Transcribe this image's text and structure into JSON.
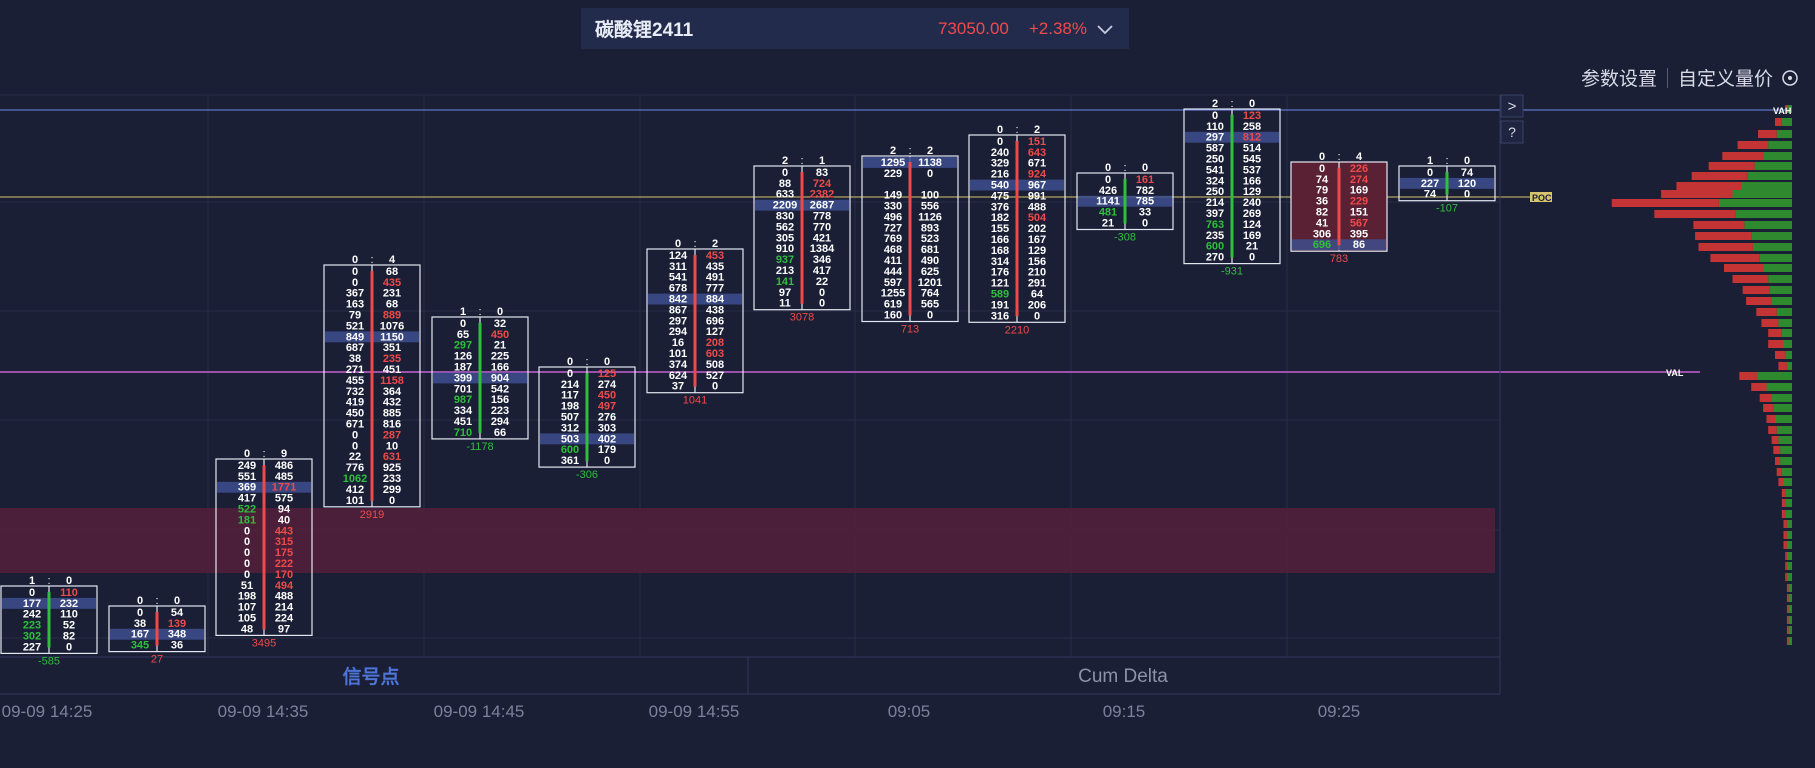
{
  "header": {
    "symbol": "碳酸锂2411",
    "price": "73050.00",
    "change": "+2.38%"
  },
  "links": {
    "params": "参数设置",
    "custom": "自定义量价"
  },
  "side_buttons": {
    "next": ">",
    "help": "?"
  },
  "panels": {
    "signal": "信号点",
    "cum_delta": "Cum Delta"
  },
  "colors": {
    "up": "#ef4a4a",
    "down": "#2fbf3c",
    "vah": "#6f89e8",
    "poc": "#d8c46a",
    "val": "#c660d0"
  },
  "chart_data": {
    "type": "footprint",
    "x_ticks": [
      "09-09 14:25",
      "09-09 14:35",
      "09-09 14:45",
      "09-09 14:55",
      "09:05",
      "09:15",
      "09:25"
    ],
    "levels": {
      "VAH": "VAH",
      "POC": "POC",
      "VAL": "VAL"
    },
    "bars": [
      {
        "header": [
          "1",
          "0"
        ],
        "footer": "-585",
        "rows": [
          [
            "0",
            "110"
          ],
          [
            "177",
            "232"
          ],
          [
            "242",
            "110"
          ],
          [
            "223",
            "52"
          ],
          [
            "302",
            "82"
          ],
          [
            "227",
            "0"
          ]
        ]
      },
      {
        "header": [
          "0",
          "0"
        ],
        "footer": "27",
        "rows": [
          [
            "0",
            "54"
          ],
          [
            "38",
            "139"
          ],
          [
            "167",
            "348"
          ],
          [
            "345",
            "36"
          ]
        ]
      },
      {
        "header": [
          "0",
          "9"
        ],
        "footer": "3495",
        "rows": [
          [
            "249",
            "486"
          ],
          [
            "551",
            "485"
          ],
          [
            "369",
            "1771"
          ],
          [
            "417",
            "575"
          ],
          [
            "522",
            "94"
          ],
          [
            "181",
            "40"
          ],
          [
            "0",
            "443"
          ],
          [
            "0",
            "315"
          ],
          [
            "0",
            "175"
          ],
          [
            "0",
            "222"
          ],
          [
            "0",
            "170"
          ],
          [
            "51",
            "494"
          ],
          [
            "198",
            "488"
          ],
          [
            "107",
            "214"
          ],
          [
            "105",
            "224"
          ],
          [
            "48",
            "97"
          ]
        ]
      },
      {
        "header": [
          "0",
          "4"
        ],
        "footer": "2919",
        "rows": [
          [
            "0",
            "68"
          ],
          [
            "0",
            "435"
          ],
          [
            "367",
            "231"
          ],
          [
            "163",
            "68"
          ],
          [
            "79",
            "889"
          ],
          [
            "521",
            "1076"
          ],
          [
            "849",
            "1150"
          ],
          [
            "687",
            "351"
          ],
          [
            "38",
            "235"
          ],
          [
            "271",
            "451"
          ],
          [
            "455",
            "1158"
          ],
          [
            "732",
            "364"
          ],
          [
            "419",
            "432"
          ],
          [
            "450",
            "885"
          ],
          [
            "671",
            "816"
          ],
          [
            "0",
            "287"
          ],
          [
            "0",
            "10"
          ],
          [
            "22",
            "631"
          ],
          [
            "776",
            "925"
          ],
          [
            "1062",
            "233"
          ],
          [
            "412",
            "299"
          ],
          [
            "101",
            "0"
          ]
        ]
      },
      {
        "header": [
          "1",
          "0"
        ],
        "footer": "-1178",
        "rows": [
          [
            "0",
            "32"
          ],
          [
            "65",
            "450"
          ],
          [
            "297",
            "21"
          ],
          [
            "126",
            "225"
          ],
          [
            "187",
            "166"
          ],
          [
            "399",
            "904"
          ],
          [
            "701",
            "542"
          ],
          [
            "987",
            "156"
          ],
          [
            "334",
            "223"
          ],
          [
            "451",
            "294"
          ],
          [
            "710",
            "66"
          ]
        ]
      },
      {
        "header": [
          "0",
          "0"
        ],
        "footer": "-306",
        "rows": [
          [
            "0",
            "125"
          ],
          [
            "214",
            "274"
          ],
          [
            "117",
            "450"
          ],
          [
            "198",
            "497"
          ],
          [
            "507",
            "276"
          ],
          [
            "312",
            "303"
          ],
          [
            "503",
            "402"
          ],
          [
            "600",
            "179"
          ],
          [
            "361",
            "0"
          ]
        ]
      },
      {
        "header": [
          "0",
          "2"
        ],
        "footer": "1041",
        "rows": [
          [
            "124",
            "453"
          ],
          [
            "311",
            "435"
          ],
          [
            "541",
            "491"
          ],
          [
            "678",
            "777"
          ],
          [
            "842",
            "884"
          ],
          [
            "867",
            "438"
          ],
          [
            "297",
            "696"
          ],
          [
            "294",
            "127"
          ],
          [
            "16",
            "208"
          ],
          [
            "101",
            "603"
          ],
          [
            "374",
            "508"
          ],
          [
            "624",
            "527"
          ],
          [
            "37",
            "0"
          ]
        ]
      },
      {
        "header": [
          "2",
          "1"
        ],
        "footer": "3078",
        "rows": [
          [
            "0",
            "83"
          ],
          [
            "88",
            "724"
          ],
          [
            "633",
            "2382"
          ],
          [
            "2209",
            "2687"
          ],
          [
            "830",
            "778"
          ],
          [
            "562",
            "770"
          ],
          [
            "305",
            "421"
          ],
          [
            "910",
            "1384"
          ],
          [
            "937",
            "346"
          ],
          [
            "213",
            "417"
          ],
          [
            "141",
            "22"
          ],
          [
            "97",
            "0"
          ],
          [
            "11",
            "0"
          ]
        ]
      },
      {
        "header": [
          "2",
          "2"
        ],
        "footer": "713",
        "rows": [
          [
            "1295",
            "1138"
          ],
          [
            "229",
            "0"
          ],
          [
            "",
            ""
          ],
          [
            "149",
            "100"
          ],
          [
            "330",
            "556"
          ],
          [
            "496",
            "1126"
          ],
          [
            "727",
            "893"
          ],
          [
            "769",
            "523"
          ],
          [
            "468",
            "681"
          ],
          [
            "411",
            "490"
          ],
          [
            "444",
            "625"
          ],
          [
            "597",
            "1201"
          ],
          [
            "1255",
            "764"
          ],
          [
            "619",
            "565"
          ],
          [
            "160",
            "0"
          ]
        ]
      },
      {
        "header": [
          "0",
          "2"
        ],
        "footer": "2210",
        "rows": [
          [
            "0",
            "151"
          ],
          [
            "240",
            "643"
          ],
          [
            "329",
            "671"
          ],
          [
            "216",
            "924"
          ],
          [
            "540",
            "967"
          ],
          [
            "475",
            "991"
          ],
          [
            "376",
            "488"
          ],
          [
            "182",
            "504"
          ],
          [
            "155",
            "202"
          ],
          [
            "166",
            "167"
          ],
          [
            "168",
            "129"
          ],
          [
            "314",
            "156"
          ],
          [
            "176",
            "210"
          ],
          [
            "121",
            "291"
          ],
          [
            "589",
            "64"
          ],
          [
            "191",
            "206"
          ],
          [
            "316",
            "0"
          ]
        ]
      },
      {
        "header": [
          "0",
          "0"
        ],
        "footer": "-308",
        "rows": [
          [
            "0",
            "161"
          ],
          [
            "426",
            "782"
          ],
          [
            "1141",
            "785"
          ],
          [
            "481",
            "33"
          ],
          [
            "21",
            "0"
          ]
        ]
      },
      {
        "header": [
          "2",
          "0"
        ],
        "footer": "-931",
        "rows": [
          [
            "0",
            "123"
          ],
          [
            "110",
            "258"
          ],
          [
            "297",
            "812"
          ],
          [
            "587",
            "514"
          ],
          [
            "250",
            "545"
          ],
          [
            "541",
            "537"
          ],
          [
            "324",
            "166"
          ],
          [
            "250",
            "129"
          ],
          [
            "214",
            "240"
          ],
          [
            "397",
            "269"
          ],
          [
            "763",
            "124"
          ],
          [
            "235",
            "169"
          ],
          [
            "600",
            "21"
          ],
          [
            "270",
            "0"
          ]
        ]
      },
      {
        "header": [
          "0",
          "4"
        ],
        "footer": "783",
        "rows": [
          [
            "0",
            "226"
          ],
          [
            "74",
            "274"
          ],
          [
            "79",
            "169"
          ],
          [
            "36",
            "229"
          ],
          [
            "82",
            "151"
          ],
          [
            "41",
            "567"
          ],
          [
            "306",
            "395"
          ],
          [
            "696",
            "86"
          ]
        ]
      },
      {
        "header": [
          "1",
          "0"
        ],
        "footer": "-107",
        "rows": [
          [
            "0",
            "74"
          ],
          [
            "227",
            "120"
          ],
          [
            "74",
            "0"
          ]
        ]
      }
    ]
  }
}
